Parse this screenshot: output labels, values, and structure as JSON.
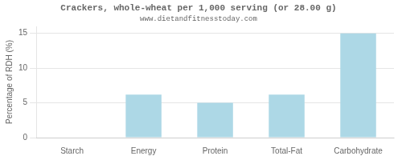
{
  "chart_data": {
    "type": "bar",
    "title": "Crackers, whole-wheat per 1,000 serving (or 28.00 g)",
    "subtitle": "www.dietandfitnesstoday.com",
    "categories": [
      "Starch",
      "Energy",
      "Protein",
      "Total-Fat",
      "Carbohydrate"
    ],
    "values": [
      0,
      6.2,
      5.0,
      6.2,
      15.0
    ],
    "color": "#add8e6",
    "ylabel": "Percentage of RDH (%)",
    "ylim": [
      0,
      16
    ],
    "yticks": [
      0,
      5,
      10,
      15
    ],
    "grid": true
  }
}
